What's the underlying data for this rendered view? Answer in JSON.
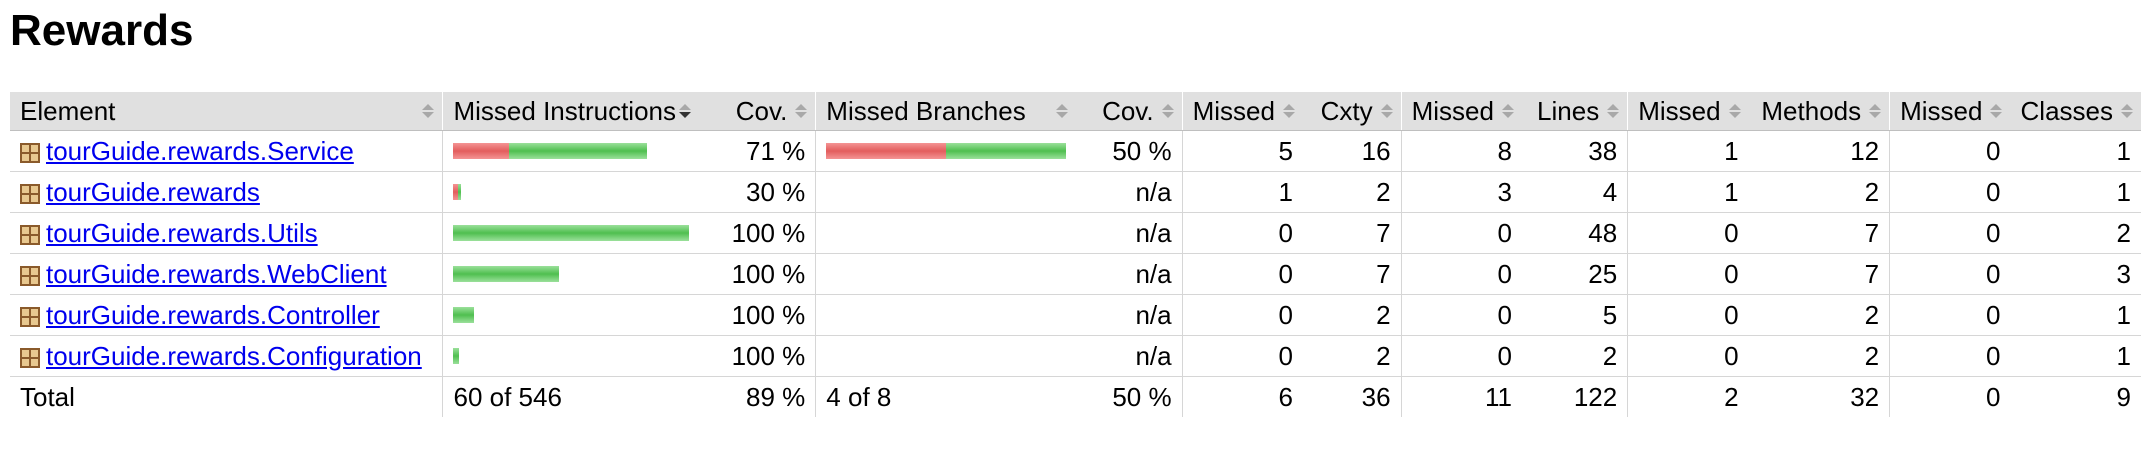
{
  "title": "Rewards",
  "colors": {
    "missed_bar": "#e35d5d",
    "covered_bar": "#4fbf4f",
    "header_bg": "#e0e0e0",
    "link": "#0000ee"
  },
  "headers": {
    "element": "Element",
    "missed_instructions": "Missed Instructions",
    "instr_cov": "Cov.",
    "missed_branches": "Missed Branches",
    "branch_cov": "Cov.",
    "missed_cxty": "Missed",
    "cxty": "Cxty",
    "missed_lines": "Missed",
    "lines": "Lines",
    "missed_methods": "Missed",
    "methods": "Methods",
    "missed_classes": "Missed",
    "classes": "Classes"
  },
  "rows": [
    {
      "name": "tourGuide.rewards.Service",
      "instr_missed_fraction": 0.29,
      "instr_total_fraction": 0.82,
      "instr_cov": "71 %",
      "branch_missed_fraction": 0.5,
      "branch_total_fraction": 1.0,
      "branch_cov": "50 %",
      "missed_cxty": "5",
      "cxty": "16",
      "missed_lines": "8",
      "lines": "38",
      "missed_methods": "1",
      "methods": "12",
      "missed_classes": "0",
      "classes": "1"
    },
    {
      "name": "tourGuide.rewards",
      "instr_missed_fraction": 0.7,
      "instr_total_fraction": 0.03,
      "instr_cov": "30 %",
      "branch_missed_fraction": 0,
      "branch_total_fraction": 0,
      "branch_cov": "n/a",
      "missed_cxty": "1",
      "cxty": "2",
      "missed_lines": "3",
      "lines": "4",
      "missed_methods": "1",
      "methods": "2",
      "missed_classes": "0",
      "classes": "1"
    },
    {
      "name": "tourGuide.rewards.Utils",
      "instr_missed_fraction": 0,
      "instr_total_fraction": 1.0,
      "instr_cov": "100 %",
      "branch_missed_fraction": 0,
      "branch_total_fraction": 0,
      "branch_cov": "n/a",
      "missed_cxty": "0",
      "cxty": "7",
      "missed_lines": "0",
      "lines": "48",
      "missed_methods": "0",
      "methods": "7",
      "missed_classes": "0",
      "classes": "2"
    },
    {
      "name": "tourGuide.rewards.WebClient",
      "instr_missed_fraction": 0,
      "instr_total_fraction": 0.45,
      "instr_cov": "100 %",
      "branch_missed_fraction": 0,
      "branch_total_fraction": 0,
      "branch_cov": "n/a",
      "missed_cxty": "0",
      "cxty": "7",
      "missed_lines": "0",
      "lines": "25",
      "missed_methods": "0",
      "methods": "7",
      "missed_classes": "0",
      "classes": "3"
    },
    {
      "name": "tourGuide.rewards.Controller",
      "instr_missed_fraction": 0,
      "instr_total_fraction": 0.09,
      "instr_cov": "100 %",
      "branch_missed_fraction": 0,
      "branch_total_fraction": 0,
      "branch_cov": "n/a",
      "missed_cxty": "0",
      "cxty": "2",
      "missed_lines": "0",
      "lines": "5",
      "missed_methods": "0",
      "methods": "2",
      "missed_classes": "0",
      "classes": "1"
    },
    {
      "name": "tourGuide.rewards.Configuration",
      "instr_missed_fraction": 0,
      "instr_total_fraction": 0.025,
      "instr_cov": "100 %",
      "branch_missed_fraction": 0,
      "branch_total_fraction": 0,
      "branch_cov": "n/a",
      "missed_cxty": "0",
      "cxty": "2",
      "missed_lines": "0",
      "lines": "2",
      "missed_methods": "0",
      "methods": "2",
      "missed_classes": "0",
      "classes": "1"
    }
  ],
  "total": {
    "label": "Total",
    "missed_instructions": "60 of 546",
    "instr_cov": "89 %",
    "missed_branches": "4 of 8",
    "branch_cov": "50 %",
    "missed_cxty": "6",
    "cxty": "36",
    "missed_lines": "11",
    "lines": "122",
    "missed_methods": "2",
    "methods": "32",
    "missed_classes": "0",
    "classes": "9"
  }
}
